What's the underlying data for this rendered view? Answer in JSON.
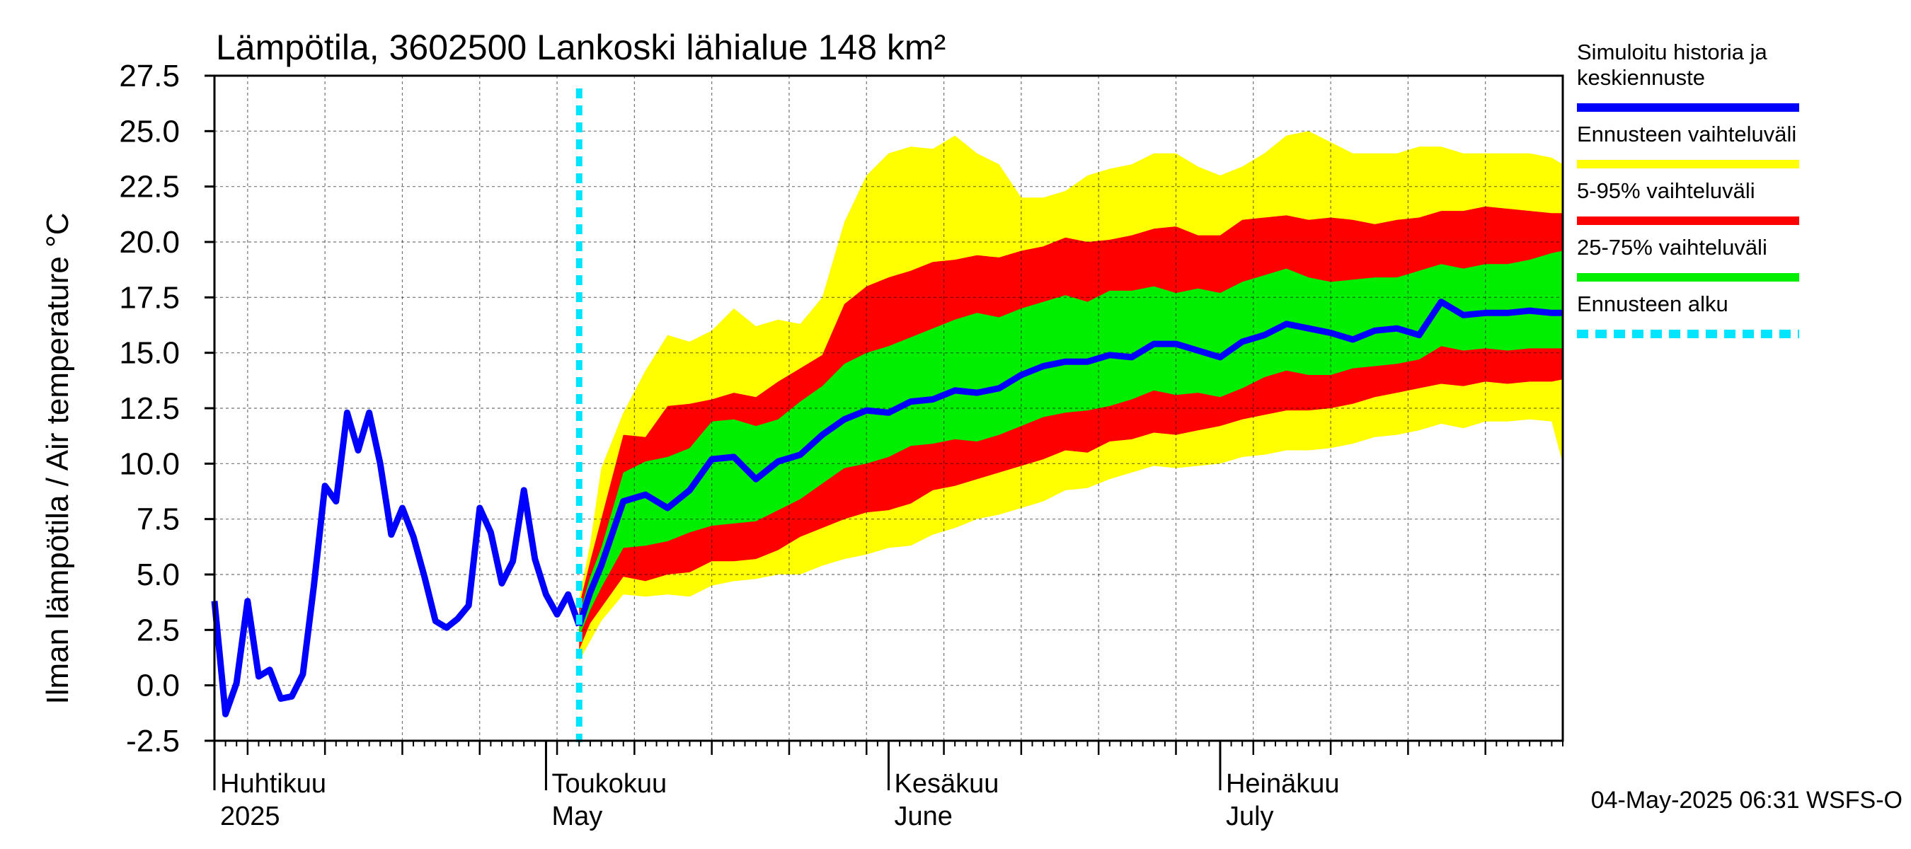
{
  "chart_data": {
    "type": "area",
    "title": "Lämpötila, 3602500 Lankoski lähialue 148 km²",
    "ylabel": "Ilman lämpötila / Air temperature   °C",
    "ylim": [
      -2.5,
      27.5
    ],
    "yticks": [
      "27.5",
      "25.0",
      "22.5",
      "20.0",
      "17.5",
      "15.0",
      "12.5",
      "10.0",
      "7.5",
      "5.0",
      "2.5",
      "0.0",
      "-2.5"
    ],
    "x_start": "2025-04-01",
    "x_end": "2025-08-01",
    "forecast_start": "2025-05-04",
    "month_labels": [
      {
        "date": "2025-04-01",
        "fi": "Huhtikuu",
        "en": "2025"
      },
      {
        "date": "2025-05-01",
        "fi": "Toukokuu",
        "en": "May"
      },
      {
        "date": "2025-06-01",
        "fi": "Kesäkuu",
        "en": "June"
      },
      {
        "date": "2025-07-01",
        "fi": "Heinäkuu",
        "en": "July"
      }
    ],
    "legend": [
      {
        "label": "Simuloitu historia ja keskiennuste",
        "lines": [
          "Simuloitu historia ja",
          "keskiennuste"
        ],
        "color": "#0000ff"
      },
      {
        "label": "Ennusteen vaihteluväli",
        "lines": [
          "Ennusteen vaihteluväli"
        ],
        "color": "#ffff00"
      },
      {
        "label": "5-95% vaihteluväli",
        "lines": [
          "5-95% vaihteluväli"
        ],
        "color": "#ff0000"
      },
      {
        "label": "25-75% vaihteluväli",
        "lines": [
          "25-75% vaihteluväli"
        ],
        "color": "#00ee00"
      },
      {
        "label": "Ennusteen alku",
        "lines": [
          "Ennusteen alku"
        ],
        "color": "#00e5ff"
      }
    ],
    "footer": "04-May-2025 06:31 WSFS-O",
    "history": {
      "dates": [
        "2025-04-01",
        "2025-04-02",
        "2025-04-03",
        "2025-04-04",
        "2025-04-05",
        "2025-04-06",
        "2025-04-07",
        "2025-04-08",
        "2025-04-09",
        "2025-04-10",
        "2025-04-11",
        "2025-04-12",
        "2025-04-13",
        "2025-04-14",
        "2025-04-15",
        "2025-04-16",
        "2025-04-17",
        "2025-04-18",
        "2025-04-19",
        "2025-04-20",
        "2025-04-21",
        "2025-04-22",
        "2025-04-23",
        "2025-04-24",
        "2025-04-25",
        "2025-04-26",
        "2025-04-27",
        "2025-04-28",
        "2025-04-29",
        "2025-04-30",
        "2025-05-01",
        "2025-05-02",
        "2025-05-03",
        "2025-05-04"
      ],
      "values": [
        3.8,
        -1.3,
        0.1,
        3.8,
        0.4,
        0.7,
        -0.6,
        -0.5,
        0.5,
        4.5,
        9.0,
        8.3,
        12.3,
        10.6,
        12.3,
        10.0,
        6.8,
        8.0,
        6.7,
        4.9,
        2.9,
        2.6,
        3.0,
        3.6,
        8.0,
        6.9,
        4.6,
        5.6,
        8.8,
        5.7,
        4.1,
        3.2,
        4.1,
        2.7
      ]
    },
    "forecast": {
      "dates": [
        "2025-05-04",
        "2025-05-05",
        "2025-05-06",
        "2025-05-08",
        "2025-05-10",
        "2025-05-12",
        "2025-05-14",
        "2025-05-16",
        "2025-05-18",
        "2025-05-20",
        "2025-05-22",
        "2025-05-24",
        "2025-05-26",
        "2025-05-28",
        "2025-05-30",
        "2025-06-01",
        "2025-06-03",
        "2025-06-05",
        "2025-06-07",
        "2025-06-09",
        "2025-06-11",
        "2025-06-13",
        "2025-06-15",
        "2025-06-17",
        "2025-06-19",
        "2025-06-21",
        "2025-06-23",
        "2025-06-25",
        "2025-06-27",
        "2025-06-29",
        "2025-07-01",
        "2025-07-03",
        "2025-07-05",
        "2025-07-07",
        "2025-07-09",
        "2025-07-11",
        "2025-07-13",
        "2025-07-15",
        "2025-07-17",
        "2025-07-19",
        "2025-07-21",
        "2025-07-23",
        "2025-07-25",
        "2025-07-27",
        "2025-07-29",
        "2025-07-31",
        "2025-08-01"
      ],
      "mean": [
        2.7,
        4.2,
        5.4,
        8.3,
        8.6,
        8.0,
        8.8,
        10.2,
        10.3,
        9.3,
        10.1,
        10.4,
        11.3,
        12.0,
        12.4,
        12.3,
        12.8,
        12.9,
        13.3,
        13.2,
        13.4,
        14.0,
        14.4,
        14.6,
        14.6,
        14.9,
        14.8,
        15.4,
        15.4,
        15.1,
        14.8,
        15.5,
        15.8,
        16.3,
        16.1,
        15.9,
        15.6,
        16.0,
        16.1,
        15.8,
        17.3,
        16.7,
        16.8,
        16.8,
        16.9,
        16.8,
        16.8
      ],
      "p25": [
        2.2,
        3.4,
        4.4,
        6.2,
        6.3,
        6.5,
        6.9,
        7.2,
        7.3,
        7.4,
        7.9,
        8.4,
        9.1,
        9.8,
        10.0,
        10.3,
        10.8,
        10.9,
        11.1,
        11.0,
        11.3,
        11.7,
        12.1,
        12.3,
        12.4,
        12.6,
        12.9,
        13.3,
        13.1,
        13.2,
        13.0,
        13.4,
        13.9,
        14.2,
        14.0,
        14.0,
        14.3,
        14.4,
        14.5,
        14.7,
        15.3,
        15.1,
        15.2,
        15.1,
        15.2,
        15.2,
        15.2
      ],
      "p75": [
        3.2,
        4.9,
        6.2,
        9.6,
        10.1,
        10.3,
        10.7,
        11.9,
        12.0,
        11.7,
        12.0,
        12.8,
        13.5,
        14.5,
        15.0,
        15.3,
        15.7,
        16.1,
        16.5,
        16.8,
        16.6,
        17.0,
        17.3,
        17.6,
        17.3,
        17.8,
        17.8,
        18.0,
        17.7,
        17.9,
        17.7,
        18.2,
        18.5,
        18.8,
        18.4,
        18.2,
        18.3,
        18.4,
        18.4,
        18.7,
        19.0,
        18.8,
        19.0,
        19.0,
        19.2,
        19.5,
        19.6
      ],
      "p05": [
        1.6,
        2.8,
        3.5,
        4.9,
        4.7,
        5.0,
        5.1,
        5.6,
        5.6,
        5.7,
        6.1,
        6.7,
        7.1,
        7.5,
        7.8,
        7.9,
        8.2,
        8.8,
        9.0,
        9.3,
        9.6,
        9.9,
        10.2,
        10.6,
        10.5,
        11.0,
        11.1,
        11.4,
        11.3,
        11.5,
        11.7,
        12.0,
        12.2,
        12.4,
        12.4,
        12.5,
        12.7,
        13.0,
        13.2,
        13.4,
        13.6,
        13.5,
        13.7,
        13.6,
        13.7,
        13.7,
        13.8
      ],
      "p95": [
        3.6,
        5.6,
        7.5,
        11.3,
        11.2,
        12.6,
        12.7,
        12.9,
        13.2,
        13.0,
        13.7,
        14.3,
        14.9,
        17.2,
        18.0,
        18.4,
        18.7,
        19.1,
        19.2,
        19.4,
        19.3,
        19.6,
        19.8,
        20.2,
        20.0,
        20.1,
        20.3,
        20.6,
        20.7,
        20.3,
        20.3,
        21.0,
        21.1,
        21.2,
        21.0,
        21.1,
        21.0,
        20.8,
        21.0,
        21.1,
        21.4,
        21.4,
        21.6,
        21.5,
        21.4,
        21.3,
        21.3
      ],
      "min": [
        1.1,
        2.0,
        2.9,
        4.1,
        4.0,
        4.1,
        4.0,
        4.5,
        4.7,
        4.8,
        5.0,
        5.0,
        5.4,
        5.7,
        5.9,
        6.2,
        6.3,
        6.8,
        7.1,
        7.5,
        7.7,
        8.0,
        8.3,
        8.8,
        8.9,
        9.3,
        9.6,
        9.9,
        9.8,
        9.9,
        10.0,
        10.3,
        10.4,
        10.6,
        10.6,
        10.7,
        10.9,
        11.2,
        11.3,
        11.5,
        11.8,
        11.6,
        11.9,
        11.9,
        12.0,
        11.9,
        10.0
      ],
      "max": [
        3.9,
        6.4,
        9.8,
        12.3,
        14.2,
        15.8,
        15.5,
        16.0,
        17.0,
        16.2,
        16.5,
        16.3,
        17.5,
        20.9,
        23.0,
        24.0,
        24.3,
        24.2,
        24.8,
        24.0,
        23.5,
        22.0,
        22.0,
        22.3,
        23.0,
        23.3,
        23.5,
        24.0,
        24.0,
        23.4,
        23.0,
        23.4,
        24.0,
        24.8,
        25.0,
        24.5,
        24.0,
        24.0,
        24.0,
        24.3,
        24.3,
        24.0,
        24.0,
        24.0,
        24.0,
        23.8,
        23.5
      ]
    }
  }
}
